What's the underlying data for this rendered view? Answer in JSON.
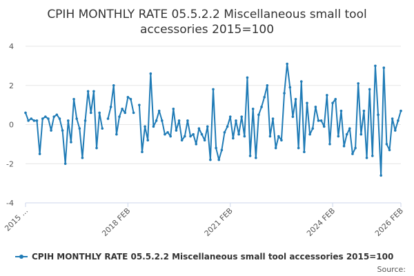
{
  "colors": {
    "series": "#1f7bb6",
    "grid": "#e6e6e6",
    "axis": "#ccd6eb"
  },
  "source_label": "Source:",
  "chart_data": {
    "type": "line",
    "title": "CPIH MONTHLY RATE 05.5.2.2 Miscellaneous small tool accessories 2015=100",
    "title_lines": [
      "CPIH MONTHLY RATE 05.5.2.2 Miscellaneous small tool",
      "accessories 2015=100"
    ],
    "xlabel": "",
    "ylabel": "",
    "ylim": [
      -4,
      4
    ],
    "yticks": [
      -4,
      -2,
      0,
      2,
      4
    ],
    "x_tick_labels": [
      "2015 ...",
      "2018 FEB",
      "2021 FEB",
      "2024 FEB",
      "2026 FEB"
    ],
    "x_tick_index": [
      0,
      36,
      72,
      108,
      132
    ],
    "grid": true,
    "legend_position": "bottom",
    "series": [
      {
        "name": "CPIH MONTHLY RATE 05.5.2.2 Miscellaneous small tool accessories 2015=100",
        "values": [
          0.6,
          0.2,
          0.3,
          0.2,
          0.2,
          -1.5,
          0.3,
          0.4,
          0.3,
          -0.3,
          0.4,
          0.5,
          0.3,
          -0.3,
          -2.0,
          0.2,
          -0.9,
          1.3,
          0.3,
          -0.2,
          -1.7,
          0.2,
          1.7,
          0.6,
          1.7,
          -1.2,
          0.6,
          -0.2,
          null,
          0.3,
          0.9,
          2.0,
          -0.5,
          0.4,
          0.8,
          0.6,
          1.4,
          1.3,
          0.6,
          null,
          1.0,
          -1.4,
          -0.1,
          -0.8,
          2.6,
          -0.1,
          0.2,
          0.7,
          0.2,
          -0.5,
          -0.4,
          -0.6,
          0.8,
          -0.3,
          0.2,
          -0.8,
          -0.6,
          0.2,
          -0.6,
          -0.5,
          -1.0,
          -0.2,
          -0.5,
          -0.8,
          -0.1,
          -1.8,
          1.8,
          -1.2,
          -1.8,
          -1.3,
          -0.4,
          -0.1,
          0.4,
          -0.7,
          0.2,
          -0.5,
          0.4,
          -0.6,
          2.4,
          -1.6,
          0.8,
          -1.7,
          0.5,
          0.9,
          1.4,
          2.0,
          -0.6,
          0.3,
          -1.2,
          -0.6,
          -0.8,
          1.6,
          3.1,
          1.9,
          0.4,
          1.3,
          -1.2,
          2.2,
          -1.4,
          1.1,
          -0.5,
          -0.2,
          0.9,
          0.2,
          0.2,
          -0.1,
          1.5,
          -1.0,
          1.1,
          1.3,
          -0.6,
          0.7,
          -1.1,
          -0.5,
          -0.2,
          -1.5,
          -1.2,
          2.1,
          -0.5,
          0.7,
          -1.7,
          1.8,
          -1.6,
          3.0,
          0.5,
          -2.6,
          2.9,
          -1.0,
          -1.3,
          0.3,
          -0.3,
          0.2,
          0.7
        ]
      }
    ]
  }
}
